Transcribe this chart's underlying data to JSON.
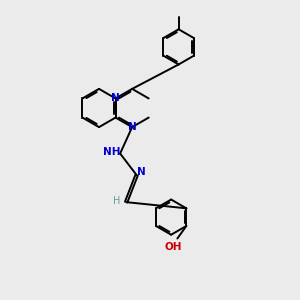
{
  "background_color": "#ebebeb",
  "bond_color": "#000000",
  "nitrogen_color": "#0000cc",
  "oxygen_color": "#cc0000",
  "hydrogen_color": "#5f9ea0",
  "bond_width": 1.4,
  "dbo": 0.055,
  "figsize": [
    3.0,
    3.0
  ],
  "dpi": 100,
  "xlim": [
    0,
    10
  ],
  "ylim": [
    0,
    10
  ]
}
